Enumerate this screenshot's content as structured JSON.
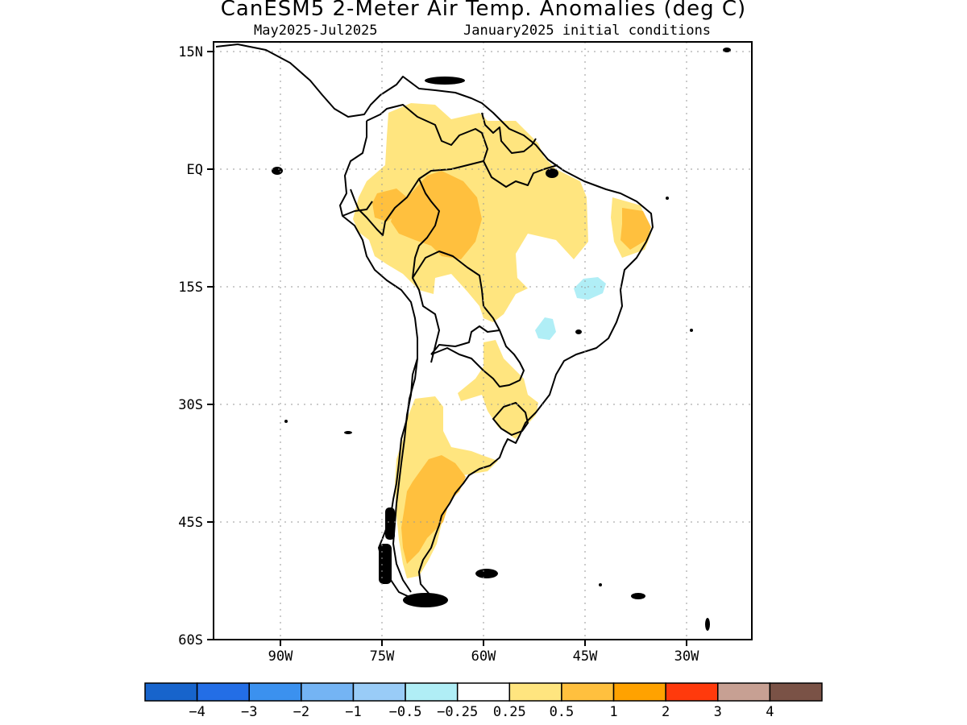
{
  "title": "CanESM5 2-Meter Air Temp. Anomalies (deg C)",
  "subtitle_left": "May2025-Jul2025",
  "subtitle_right": "January2025 initial conditions",
  "lat_ticks": [
    "15N",
    "EQ",
    "15S",
    "30S",
    "45S",
    "60S"
  ],
  "lon_ticks": [
    "90W",
    "75W",
    "60W",
    "45W",
    "30W"
  ],
  "colorbar": {
    "colors": [
      "#1764cc",
      "#236ee6",
      "#3b91ef",
      "#74b4f4",
      "#99ccf7",
      "#b0eef6",
      "#ffffff",
      "#ffe57f",
      "#ffc03e",
      "#ffa200",
      "#ff3a0c",
      "#c7a093",
      "#7a5246"
    ],
    "labels": [
      "-4",
      "-3",
      "-2",
      "-1",
      "-0.5",
      "-0.25",
      "0.25",
      "0.5",
      "1",
      "2",
      "3",
      "4"
    ]
  },
  "anomaly_colors": {
    "light_warm": "#ffe57f",
    "warm": "#ffc03e",
    "light_cool": "#b0eef6"
  }
}
